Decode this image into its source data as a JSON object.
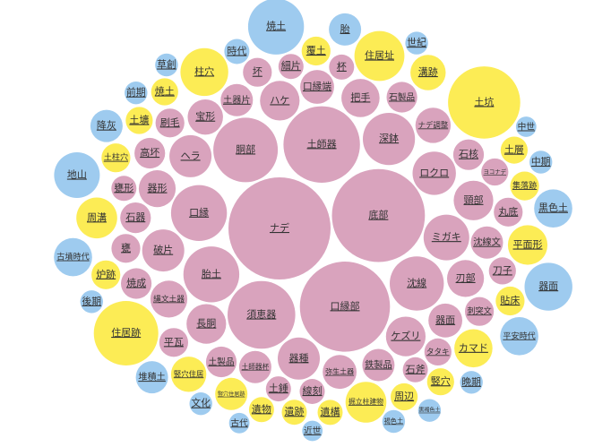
{
  "chart_data": {
    "type": "bubble",
    "legend": "none",
    "grid": false,
    "colors": {
      "pottery": "#d9a3bd",
      "feature": "#fcec55",
      "period": "#9ecbef",
      "label": "#333333"
    },
    "groups": [
      {
        "key": "pottery",
        "name": ""
      },
      {
        "key": "feature",
        "name": ""
      },
      {
        "key": "period",
        "name": ""
      }
    ],
    "bubbles": [
      {
        "label": "ナデ",
        "group": "pottery",
        "value": 100
      },
      {
        "label": "口縁部",
        "group": "pottery",
        "value": 78
      },
      {
        "label": "底部",
        "group": "pottery",
        "value": 83
      },
      {
        "label": "土師器",
        "group": "pottery",
        "value": 56
      },
      {
        "label": "須恵器",
        "group": "pottery",
        "value": 44
      },
      {
        "label": "胴部",
        "group": "pottery",
        "value": 40
      },
      {
        "label": "胎土",
        "group": "pottery",
        "value": 30
      },
      {
        "label": "口縁",
        "group": "pottery",
        "value": 30
      },
      {
        "label": "沈線",
        "group": "pottery",
        "value": 28
      },
      {
        "label": "深鉢",
        "group": "pottery",
        "value": 26
      },
      {
        "label": "ミガキ",
        "group": "pottery",
        "value": 20
      },
      {
        "label": "ロクロ",
        "group": "pottery",
        "value": 18
      },
      {
        "label": "ヘラ",
        "group": "pottery",
        "value": 17
      },
      {
        "label": "破片",
        "group": "pottery",
        "value": 17
      },
      {
        "label": "器種",
        "group": "pottery",
        "value": 17
      },
      {
        "label": "ハケ",
        "group": "pottery",
        "value": 15
      },
      {
        "label": "ケズリ",
        "group": "pottery",
        "value": 15
      },
      {
        "label": "長胴",
        "group": "pottery",
        "value": 15
      },
      {
        "label": "頸部",
        "group": "pottery",
        "value": 15
      },
      {
        "label": "把手",
        "group": "pottery",
        "value": 14
      },
      {
        "label": "刃部",
        "group": "pottery",
        "value": 13
      },
      {
        "label": "器形",
        "group": "pottery",
        "value": 13
      },
      {
        "label": "縄文土器",
        "group": "pottery",
        "value": 13
      },
      {
        "label": "ナデ調整",
        "group": "pottery",
        "value": 12
      },
      {
        "label": "宝形",
        "group": "pottery",
        "value": 12
      },
      {
        "label": "器面",
        "group": "pottery",
        "value": 11
      },
      {
        "label": "口縁端",
        "group": "pottery",
        "value": 11
      },
      {
        "label": "弥生土器",
        "group": "pottery",
        "value": 11
      },
      {
        "label": "沈線文",
        "group": "pottery",
        "value": 10
      },
      {
        "label": "土器片",
        "group": "pottery",
        "value": 10
      },
      {
        "label": "鉄製品",
        "group": "pottery",
        "value": 10
      },
      {
        "label": "土師器杯",
        "group": "pottery",
        "value": 10
      },
      {
        "label": "石器",
        "group": "pottery",
        "value": 9
      },
      {
        "label": "石核",
        "group": "pottery",
        "value": 9
      },
      {
        "label": "石製品",
        "group": "pottery",
        "value": 9
      },
      {
        "label": "土製品",
        "group": "pottery",
        "value": 9
      },
      {
        "label": "焼成",
        "group": "pottery",
        "value": 9
      },
      {
        "label": "高坏",
        "group": "pottery",
        "value": 9
      },
      {
        "label": "甕",
        "group": "pottery",
        "value": 8
      },
      {
        "label": "刷毛",
        "group": "pottery",
        "value": 8
      },
      {
        "label": "平瓦",
        "group": "pottery",
        "value": 8
      },
      {
        "label": "坏",
        "group": "pottery",
        "value": 8
      },
      {
        "label": "刺突文",
        "group": "pottery",
        "value": 8
      },
      {
        "label": "丸底",
        "group": "pottery",
        "value": 8
      },
      {
        "label": "タタキ",
        "group": "pottery",
        "value": 7
      },
      {
        "label": "ヨコナデ",
        "group": "pottery",
        "value": 7
      },
      {
        "label": "刀子",
        "group": "pottery",
        "value": 7
      },
      {
        "label": "細片",
        "group": "pottery",
        "value": 6
      },
      {
        "label": "杯",
        "group": "pottery",
        "value": 6
      },
      {
        "label": "甕形",
        "group": "pottery",
        "value": 6
      },
      {
        "label": "線刻",
        "group": "pottery",
        "value": 6
      },
      {
        "label": "石斧",
        "group": "pottery",
        "value": 6
      },
      {
        "label": "土錘",
        "group": "pottery",
        "value": 6
      },
      {
        "label": "土坑",
        "group": "feature",
        "value": 50
      },
      {
        "label": "住居跡",
        "group": "feature",
        "value": 40
      },
      {
        "label": "住居址",
        "group": "feature",
        "value": 24
      },
      {
        "label": "掘立柱建物",
        "group": "feature",
        "value": 16
      },
      {
        "label": "柱穴",
        "group": "feature",
        "value": 22
      },
      {
        "label": "周溝",
        "group": "feature",
        "value": 16
      },
      {
        "label": "平面形",
        "group": "feature",
        "value": 15
      },
      {
        "label": "竪穴住居",
        "group": "feature",
        "value": 12
      },
      {
        "label": "カマド",
        "group": "feature",
        "value": 14
      },
      {
        "label": "溝跡",
        "group": "feature",
        "value": 12
      },
      {
        "label": "竪穴住居跡",
        "group": "feature",
        "value": 10
      },
      {
        "label": "土柱穴",
        "group": "feature",
        "value": 8
      },
      {
        "label": "貼床",
        "group": "feature",
        "value": 8
      },
      {
        "label": "炉跡",
        "group": "feature",
        "value": 8
      },
      {
        "label": "覆土",
        "group": "feature",
        "value": 8
      },
      {
        "label": "集落跡",
        "group": "feature",
        "value": 8
      },
      {
        "label": "土壙",
        "group": "feature",
        "value": 7
      },
      {
        "label": "土層",
        "group": "feature",
        "value": 7
      },
      {
        "label": "焼土",
        "group": "feature",
        "value": 7
      },
      {
        "label": "竪穴",
        "group": "feature",
        "value": 7
      },
      {
        "label": "周辺",
        "group": "feature",
        "value": 7
      },
      {
        "label": "遺跡",
        "group": "feature",
        "value": 6
      },
      {
        "label": "遺構",
        "group": "feature",
        "value": 6
      },
      {
        "label": "遺物",
        "group": "feature",
        "value": 6
      },
      {
        "label": "焼土",
        "group": "period",
        "value": 30
      },
      {
        "label": "器面",
        "group": "period",
        "value": 22
      },
      {
        "label": "地山",
        "group": "period",
        "value": 20
      },
      {
        "label": "黒色土",
        "group": "period",
        "value": 14
      },
      {
        "label": "古墳時代",
        "group": "period",
        "value": 14
      },
      {
        "label": "平安時代",
        "group": "period",
        "value": 14
      },
      {
        "label": "降灰",
        "group": "period",
        "value": 10
      },
      {
        "label": "胎",
        "group": "period",
        "value": 10
      },
      {
        "label": "堆積土",
        "group": "period",
        "value": 10
      },
      {
        "label": "時代",
        "group": "period",
        "value": 6
      },
      {
        "label": "文化",
        "group": "period",
        "value": 5
      },
      {
        "label": "後期",
        "group": "period",
        "value": 5
      },
      {
        "label": "前期",
        "group": "period",
        "value": 5
      },
      {
        "label": "中期",
        "group": "period",
        "value": 5
      },
      {
        "label": "晩期",
        "group": "period",
        "value": 5
      },
      {
        "label": "草創",
        "group": "period",
        "value": 5
      },
      {
        "label": "世紀",
        "group": "period",
        "value": 5
      },
      {
        "label": "黒褐色土",
        "group": "period",
        "value": 5
      },
      {
        "label": "褐色土",
        "group": "period",
        "value": 5
      },
      {
        "label": "近世",
        "group": "period",
        "value": 4
      },
      {
        "label": "中世",
        "group": "period",
        "value": 4
      },
      {
        "label": "古代",
        "group": "period",
        "value": 4
      }
    ]
  }
}
